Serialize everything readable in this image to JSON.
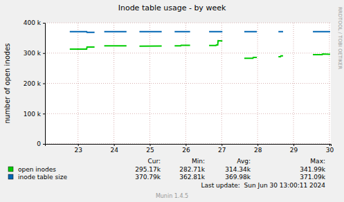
{
  "chart_data": {
    "type": "line",
    "title": "Inode table usage - by week",
    "y_label": "number of open inodes",
    "side_text": "RRDTOOL / TOBI OETIKER",
    "x": [
      23.27,
      23.74,
      23.75,
      23.96,
      24.1,
      24.23,
      24.85,
      25.0,
      25.21,
      25.83,
      26.0,
      26.19,
      26.36,
      26.37,
      26.62,
      26.9,
      27.15,
      27.34,
      27.35,
      27.39,
      27.4,
      27.52,
      27.8,
      28.13,
      28.37,
      28.38,
      28.48,
      28.8,
      29.08,
      29.14,
      29.15,
      29.21,
      29.6,
      30.04,
      30.3,
      30.31,
      30.52
    ],
    "series": [
      {
        "name": "open inodes",
        "color": "#00CC00",
        "values": [
          313000,
          313000,
          320000,
          320000,
          null,
          324000,
          324000,
          null,
          323000,
          323500,
          null,
          324000,
          324000,
          326000,
          326000,
          null,
          325000,
          325000,
          327000,
          327000,
          341000,
          340000,
          null,
          283000,
          283000,
          286000,
          286000,
          null,
          288000,
          288000,
          291000,
          291000,
          null,
          295000,
          295000,
          297000,
          296000
        ]
      },
      {
        "name": "inode table size",
        "color": "#0066B3",
        "values": [
          371000,
          371000,
          368500,
          368500,
          null,
          371000,
          371000,
          null,
          371000,
          371000,
          null,
          371000,
          371000,
          371000,
          371000,
          null,
          371000,
          371000,
          371000,
          371000,
          371000,
          371000,
          null,
          371000,
          371000,
          371000,
          371000,
          null,
          371000,
          371000,
          371000,
          371000,
          null,
          371000,
          371000,
          371000,
          371000
        ]
      }
    ],
    "xlim": [
      22.58,
      30.54
    ],
    "xticks": [
      {
        "value": 23.5,
        "label": "23"
      },
      {
        "value": 24.5,
        "label": "24"
      },
      {
        "value": 25.5,
        "label": "25"
      },
      {
        "value": 26.5,
        "label": "26"
      },
      {
        "value": 27.5,
        "label": "27"
      },
      {
        "value": 28.5,
        "label": "28"
      },
      {
        "value": 29.5,
        "label": "29"
      },
      {
        "value": 30.5,
        "label": "30"
      }
    ],
    "ylim": [
      0,
      400000
    ],
    "yticks": [
      0,
      {
        "value": 100000,
        "label": "100 k"
      },
      {
        "value": 200000,
        "label": "200 k"
      },
      {
        "value": 300000,
        "label": "300 k"
      },
      {
        "value": 400000,
        "label": "400 k"
      }
    ],
    "grid": true,
    "legend": "bottom",
    "stats": {
      "columns": [
        "Cur:",
        "Min:",
        "Avg:",
        "Max:"
      ],
      "rows": [
        [
          "295.17k",
          "282.71k",
          "314.34k",
          "341.99k"
        ],
        [
          "370.79k",
          "362.81k",
          "369.98k",
          "371.09k"
        ]
      ]
    },
    "last_update": "Last update:  Sun Jun 30 13:00:11 2024",
    "footer": "Munin 1.4.5"
  }
}
